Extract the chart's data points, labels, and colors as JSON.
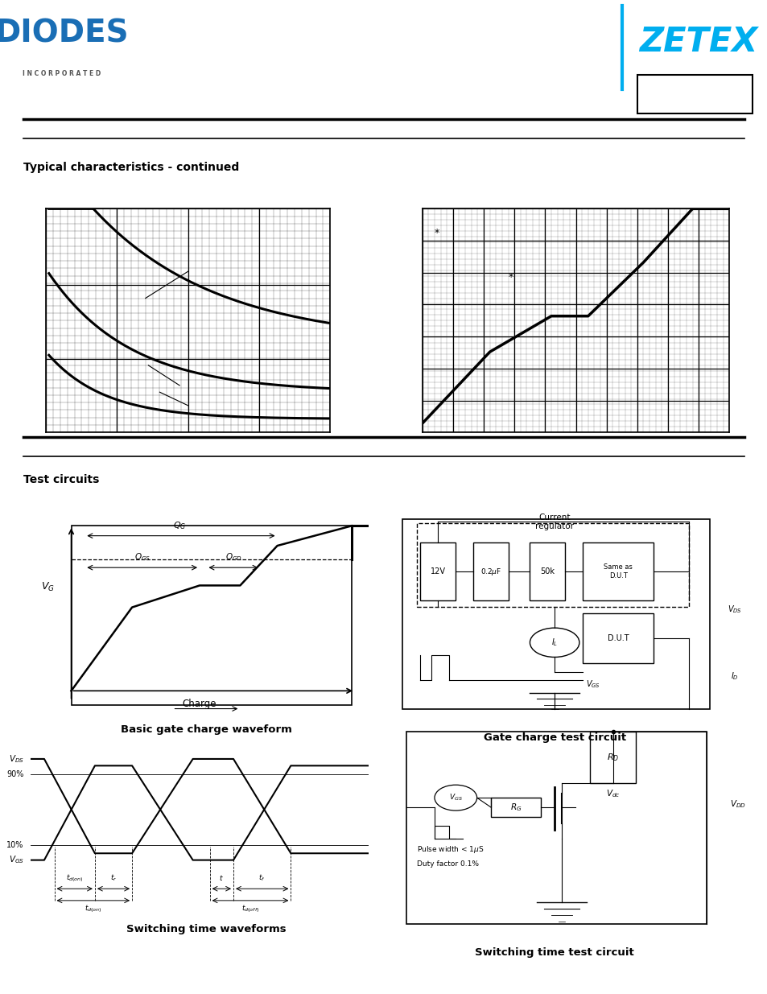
{
  "page_bg": "#ffffff",
  "diodes_logo_color": "#1a6eb5",
  "zetex_logo_color": "#00aeef",
  "header_line_color": "#000000",
  "section_title_color": "#000000",
  "chart_bg": "#ffffff",
  "chart_border": "#000000",
  "curve_color": "#000000",
  "title_section1": "Typical characteristics - continued",
  "title_section2": "Test circuits",
  "label_basic_gate": "Basic gate charge waveform",
  "label_gate_circuit": "Gate charge test circuit",
  "label_switching_wave": "Switching time waveforms",
  "label_switching_circuit": "Switching time test circuit"
}
